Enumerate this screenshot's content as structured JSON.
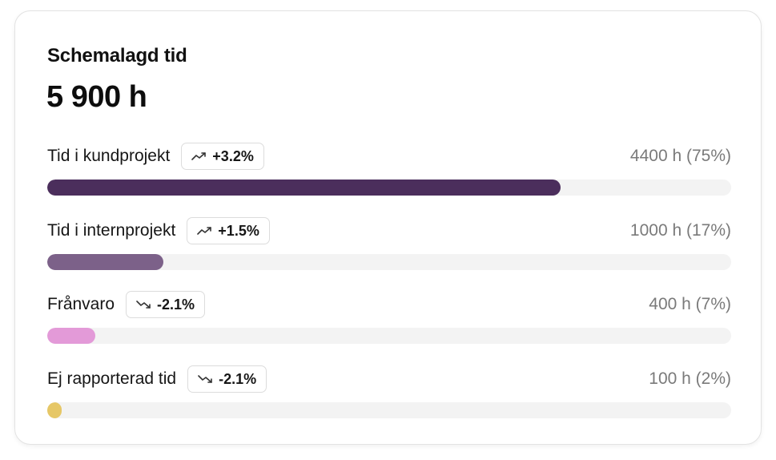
{
  "card": {
    "title": "Schemalagd tid",
    "total": "5 900 h"
  },
  "rows": [
    {
      "label": "Tid i kundprojekt",
      "trend": "+3.2%",
      "trend_direction": "up",
      "trend_icon": "trend-up-icon",
      "amount": "4400 h (75%)",
      "progress_percent": 75,
      "color": "#4b2e5c"
    },
    {
      "label": "Tid i internprojekt",
      "trend": "+1.5%",
      "trend_direction": "up",
      "trend_icon": "trend-up-icon",
      "amount": "1000 h (17%)",
      "progress_percent": 17,
      "color": "#7c6189"
    },
    {
      "label": "Frånvaro",
      "trend": "-2.1%",
      "trend_direction": "down",
      "trend_icon": "trend-down-icon",
      "amount": "400 h (7%)",
      "progress_percent": 7,
      "color": "#e39ad8"
    },
    {
      "label": "Ej rapporterad tid",
      "trend": "-2.1%",
      "trend_direction": "down",
      "trend_icon": "trend-down-icon",
      "amount": "100 h (2%)",
      "progress_percent": 2,
      "color": "#e6c766"
    }
  ],
  "colors": {
    "track": "#f3f3f3",
    "muted_text": "#7a7a7a"
  }
}
